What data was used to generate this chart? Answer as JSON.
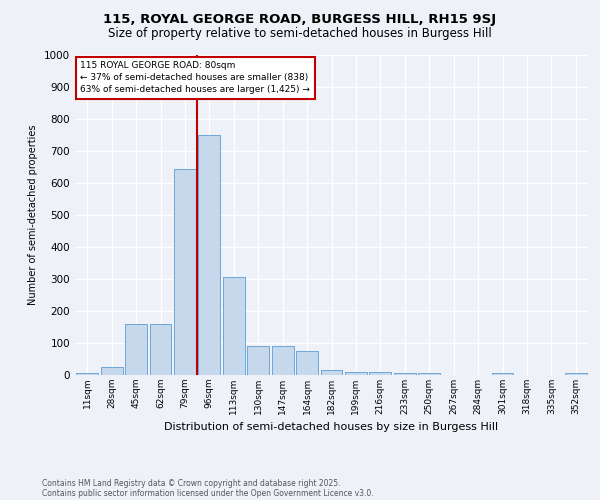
{
  "title1": "115, ROYAL GEORGE ROAD, BURGESS HILL, RH15 9SJ",
  "title2": "Size of property relative to semi-detached houses in Burgess Hill",
  "xlabel": "Distribution of semi-detached houses by size in Burgess Hill",
  "ylabel": "Number of semi-detached properties",
  "categories": [
    "11sqm",
    "28sqm",
    "45sqm",
    "62sqm",
    "79sqm",
    "96sqm",
    "113sqm",
    "130sqm",
    "147sqm",
    "164sqm",
    "182sqm",
    "199sqm",
    "216sqm",
    "233sqm",
    "250sqm",
    "267sqm",
    "284sqm",
    "301sqm",
    "318sqm",
    "335sqm",
    "352sqm"
  ],
  "values": [
    5,
    25,
    160,
    160,
    645,
    750,
    305,
    90,
    90,
    75,
    15,
    10,
    10,
    5,
    5,
    0,
    0,
    5,
    0,
    0,
    5
  ],
  "bar_color": "#c6d9ec",
  "bar_edge_color": "#5b9bd5",
  "vline_x_index": 4,
  "vline_color": "#c00000",
  "annotation_title": "115 ROYAL GEORGE ROAD: 80sqm",
  "annotation_line2": "← 37% of semi-detached houses are smaller (838)",
  "annotation_line3": "63% of semi-detached houses are larger (1,425) →",
  "annotation_box_color": "#c00000",
  "ylim": [
    0,
    1000
  ],
  "yticks": [
    0,
    100,
    200,
    300,
    400,
    500,
    600,
    700,
    800,
    900,
    1000
  ],
  "footer1": "Contains HM Land Registry data © Crown copyright and database right 2025.",
  "footer2": "Contains public sector information licensed under the Open Government Licence v3.0.",
  "bg_color": "#eef2f8",
  "plot_bg_color": "#eef2f8"
}
